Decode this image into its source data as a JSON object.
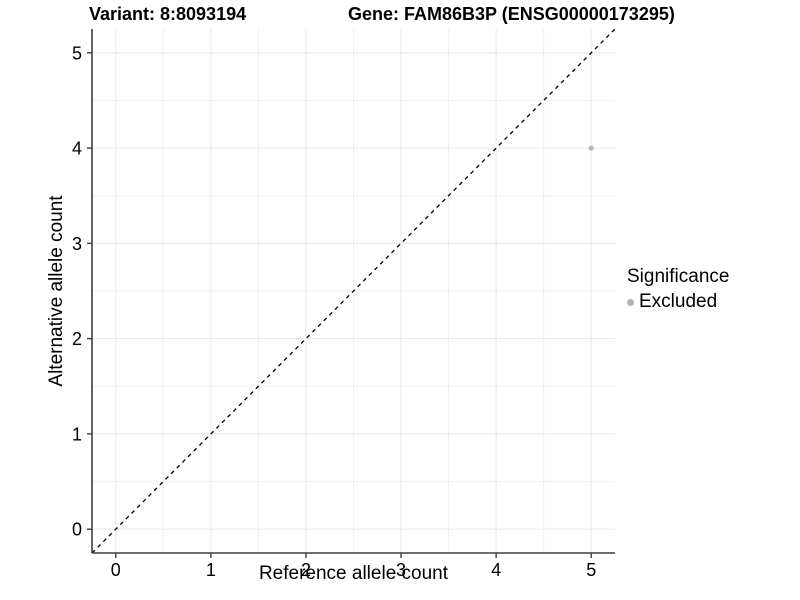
{
  "chart_data": {
    "type": "scatter",
    "title_left": "Variant: 8:8093194",
    "title_right": "Gene: FAM86B3P (ENSG00000173295)",
    "xlabel": "Reference allele count",
    "ylabel": "Alternative allele count",
    "xlim": [
      -0.25,
      5.25
    ],
    "ylim": [
      -0.25,
      5.25
    ],
    "x_ticks": [
      0,
      1,
      2,
      3,
      4,
      5
    ],
    "y_ticks": [
      0,
      1,
      2,
      3,
      4,
      5
    ],
    "minor_grid_step": 0.5,
    "grid": true,
    "points": [
      {
        "x": 5,
        "y": 4,
        "series": "Excluded"
      }
    ],
    "reference_line": {
      "style": "dashed",
      "meaning": "identity y=x",
      "from": [
        -0.25,
        -0.25
      ],
      "to": [
        5.25,
        5.25
      ]
    },
    "legend": {
      "title": "Significance",
      "position": "right",
      "entries": [
        {
          "label": "Excluded",
          "color": "#b3b3b3"
        }
      ]
    },
    "colors": {
      "point_excluded": "#b5b5b5",
      "grid_major": "#e7e7e7",
      "grid_minor": "#f0f0f0",
      "axis_line": "#3d3d3d",
      "dashed_line": "#000000",
      "text": "#000000",
      "background": "#ffffff"
    }
  }
}
